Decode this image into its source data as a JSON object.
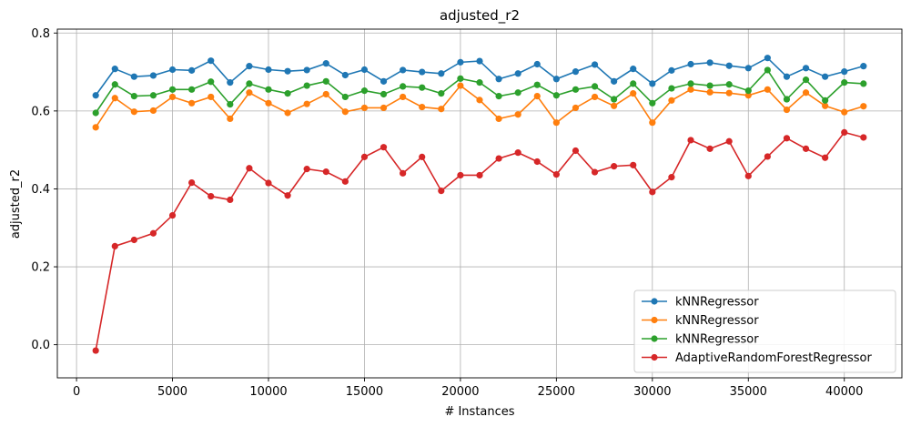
{
  "chart_data": {
    "type": "line",
    "title": "adjusted_r2",
    "xlabel": "# Instances",
    "ylabel": "adjusted_r2",
    "xlim": [
      -1000,
      43000
    ],
    "ylim": [
      -0.085,
      0.81
    ],
    "xticks": [
      0,
      5000,
      10000,
      15000,
      20000,
      25000,
      30000,
      35000,
      40000
    ],
    "yticks": [
      0.0,
      0.2,
      0.4,
      0.6,
      0.8
    ],
    "grid": true,
    "legend_position": "lower-right",
    "x": [
      1000,
      2000,
      3000,
      4000,
      5000,
      6000,
      7000,
      8000,
      9000,
      10000,
      11000,
      12000,
      13000,
      14000,
      15000,
      16000,
      17000,
      18000,
      19000,
      20000,
      21000,
      22000,
      23000,
      24000,
      25000,
      26000,
      27000,
      28000,
      29000,
      30000,
      31000,
      32000,
      33000,
      34000,
      35000,
      36000,
      37000,
      38000,
      39000,
      40000,
      41000
    ],
    "series": [
      {
        "name": "kNNRegressor",
        "color": "#1f77b4",
        "values": [
          0.64,
          0.708,
          0.688,
          0.691,
          0.706,
          0.704,
          0.729,
          0.673,
          0.715,
          0.706,
          0.702,
          0.705,
          0.722,
          0.692,
          0.706,
          0.676,
          0.705,
          0.7,
          0.696,
          0.725,
          0.728,
          0.682,
          0.696,
          0.72,
          0.682,
          0.701,
          0.719,
          0.676,
          0.708,
          0.67,
          0.704,
          0.72,
          0.724,
          0.716,
          0.71,
          0.736,
          0.688,
          0.71,
          0.688,
          0.701,
          0.715
        ]
      },
      {
        "name": "kNNRegressor",
        "color": "#ff7f0e",
        "values": [
          0.558,
          0.633,
          0.598,
          0.601,
          0.636,
          0.62,
          0.636,
          0.58,
          0.647,
          0.62,
          0.595,
          0.618,
          0.643,
          0.598,
          0.608,
          0.608,
          0.636,
          0.61,
          0.605,
          0.665,
          0.628,
          0.58,
          0.591,
          0.638,
          0.57,
          0.608,
          0.636,
          0.613,
          0.645,
          0.57,
          0.627,
          0.655,
          0.648,
          0.646,
          0.64,
          0.655,
          0.603,
          0.647,
          0.613,
          0.597,
          0.612
        ]
      },
      {
        "name": "kNNRegressor",
        "color": "#2ca02c",
        "values": [
          0.595,
          0.668,
          0.638,
          0.64,
          0.655,
          0.655,
          0.675,
          0.617,
          0.67,
          0.655,
          0.645,
          0.665,
          0.676,
          0.636,
          0.652,
          0.643,
          0.663,
          0.66,
          0.645,
          0.683,
          0.673,
          0.638,
          0.647,
          0.667,
          0.64,
          0.655,
          0.663,
          0.63,
          0.67,
          0.62,
          0.658,
          0.67,
          0.665,
          0.668,
          0.652,
          0.705,
          0.63,
          0.68,
          0.627,
          0.673,
          0.67
        ]
      },
      {
        "name": "AdaptiveRandomForestRegressor",
        "color": "#d62728",
        "values": [
          -0.015,
          0.253,
          0.269,
          0.286,
          0.332,
          0.416,
          0.381,
          0.372,
          0.453,
          0.415,
          0.383,
          0.451,
          0.444,
          0.419,
          0.482,
          0.507,
          0.44,
          0.482,
          0.395,
          0.435,
          0.435,
          0.478,
          0.493,
          0.47,
          0.437,
          0.498,
          0.443,
          0.458,
          0.461,
          0.392,
          0.43,
          0.525,
          0.503,
          0.522,
          0.433,
          0.483,
          0.53,
          0.503,
          0.48,
          0.545,
          0.532
        ]
      }
    ]
  }
}
